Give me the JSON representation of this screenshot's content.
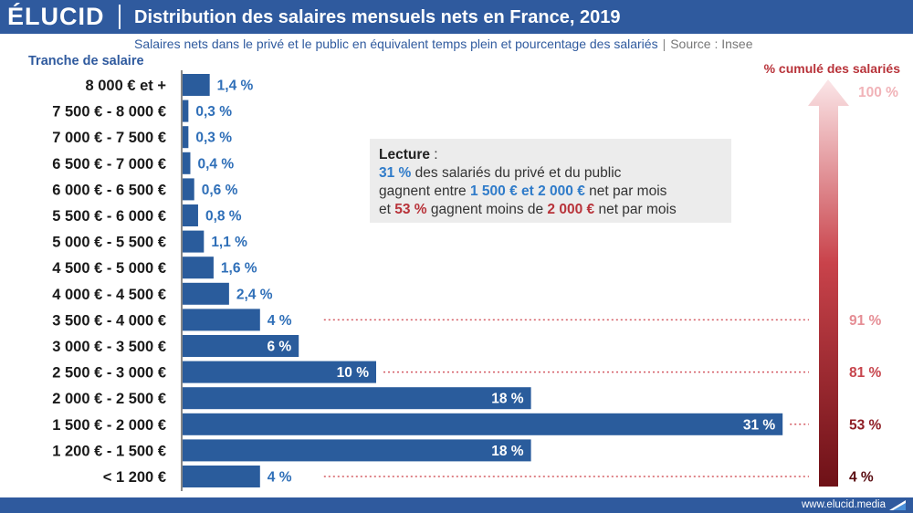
{
  "brand": {
    "logo": "ÉLUCID",
    "url": "www.elucid.media"
  },
  "header": {
    "title": "Distribution des salaires mensuels nets en France, 2019",
    "subtitle": "Salaires nets dans le privé et le public en équivalent temps plein et pourcentage des salariés",
    "source": "Source : Insee"
  },
  "colors": {
    "bar": "#2a5c9c",
    "header": "#2f5a9e",
    "value_label": "#2f6fb8",
    "cumulative_red": "#b8333a"
  },
  "lecture": {
    "heading": "Lecture",
    "l1_pct": "31 %",
    "l1_text": " des salariés du privé et du public",
    "l2_pre": "gagnent entre ",
    "l2_range": "1 500 € et 2 000 €",
    "l2_post": " net par mois",
    "l3_pre": "et ",
    "l3_pct": "53 %",
    "l3_mid": " gagnent moins de ",
    "l3_amount": "2 000 €",
    "l3_post": " net par mois"
  },
  "chart_data": {
    "type": "bar",
    "orientation": "horizontal",
    "y_title": "Tranche de salaire",
    "categories": [
      "8 000 € et +",
      "7 500 € - 8 000 €",
      "7 000 € - 7 500 €",
      "6 500 € - 7 000 €",
      "6 000 € - 6 500 €",
      "5 500 € - 6 000 €",
      "5 000 € - 5 500 €",
      "4 500 € - 5 000 €",
      "4 000 € - 4 500 €",
      "3 500 € - 4 000 €",
      "3 000 € - 3 500 €",
      "2 500 € - 3 000 €",
      "2 000 € - 2 500 €",
      "1 500 € - 2 000 €",
      "1 200 € - 1 500 €",
      "< 1 200 €"
    ],
    "values": [
      1.4,
      0.3,
      0.3,
      0.4,
      0.6,
      0.8,
      1.1,
      1.6,
      2.4,
      4,
      6,
      10,
      18,
      31,
      18,
      4
    ],
    "value_labels": [
      "1,4 %",
      "0,3 %",
      "0,3 %",
      "0,4 %",
      "0,6 %",
      "0,8 %",
      "1,1 %",
      "1,6 %",
      "2,4 %",
      "4 %",
      "6 %",
      "10 %",
      "18 %",
      "31 %",
      "18 %",
      "4 %"
    ],
    "unit": "%",
    "cumulative": {
      "title": "% cumulé des salariés",
      "top_label": "100 %",
      "markers": [
        {
          "category": "3 500 € - 4 000 €",
          "label": "91 %",
          "value": 91
        },
        {
          "category": "2 500 € - 3 000 €",
          "label": "81 %",
          "value": 81
        },
        {
          "category": "1 500 € - 2 000 €",
          "label": "53 %",
          "value": 53
        },
        {
          "category": "< 1 200 €",
          "label": "4 %",
          "value": 4
        }
      ]
    }
  }
}
